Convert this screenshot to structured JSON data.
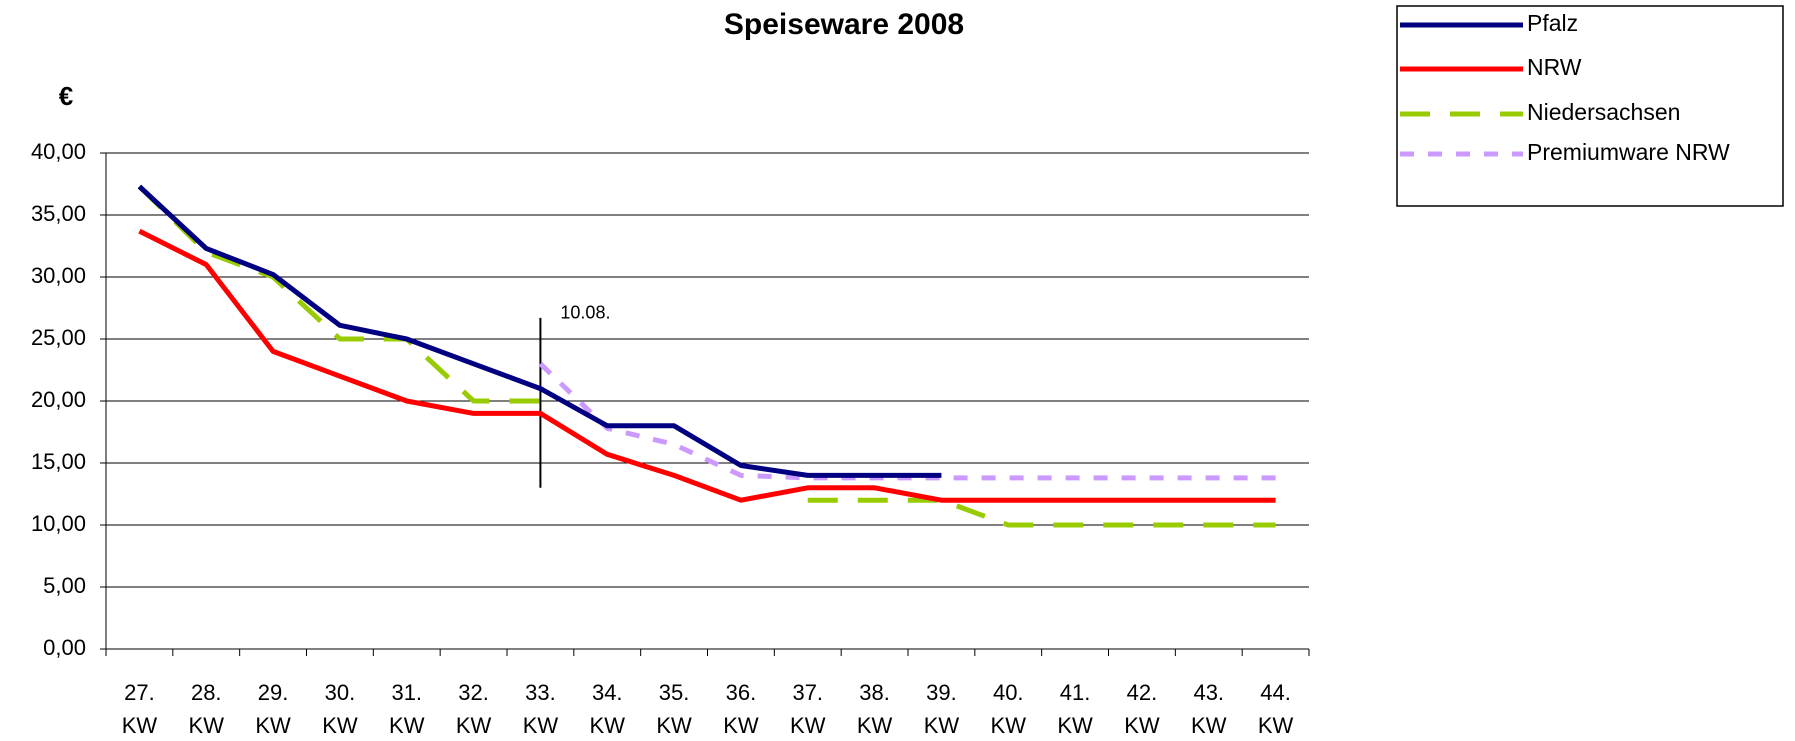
{
  "chart_data": {
    "type": "line",
    "title": "Speiseware 2008",
    "y_label": "€",
    "categories": [
      "27. KW",
      "28. KW",
      "29. KW",
      "30. KW",
      "31. KW",
      "32. KW",
      "33. KW",
      "34. KW",
      "35. KW",
      "36. KW",
      "37. KW",
      "38. KW",
      "39. KW",
      "40. KW",
      "41. KW",
      "42. KW",
      "43. KW",
      "44. KW"
    ],
    "series": [
      {
        "name": "Pfalz",
        "color": "#000080",
        "dash": "solid",
        "values": [
          37.3,
          32.3,
          30.2,
          26.1,
          25,
          23,
          21,
          18,
          18,
          14.8,
          14,
          14,
          14,
          null,
          null,
          null,
          null,
          null
        ]
      },
      {
        "name": "NRW",
        "color": "#ff0000",
        "dash": "solid",
        "values": [
          33.7,
          31,
          24,
          22,
          20,
          19,
          19,
          15.7,
          14,
          12,
          13,
          13,
          12,
          12,
          12,
          12,
          12,
          12
        ]
      },
      {
        "name": "Niedersachsen",
        "color": "#99cc00",
        "dash": "dashed",
        "values": [
          37.3,
          32,
          30,
          25,
          25,
          20,
          20,
          null,
          null,
          null,
          12,
          12,
          12,
          10,
          10,
          10,
          10,
          10
        ]
      },
      {
        "name": "Premiumware NRW",
        "color": "#cc99ff",
        "dash": "dotted",
        "values": [
          null,
          null,
          null,
          null,
          null,
          null,
          23,
          17.8,
          16.5,
          14,
          13.8,
          13.8,
          13.8,
          13.8,
          13.8,
          13.8,
          13.8,
          13.8
        ]
      }
    ],
    "ylim": [
      0,
      40
    ],
    "yticks": [
      {
        "value": 0,
        "label": "0,00"
      },
      {
        "value": 5,
        "label": "5,00"
      },
      {
        "value": 10,
        "label": "10,00"
      },
      {
        "value": 15,
        "label": "15,00"
      },
      {
        "value": 20,
        "label": "20,00"
      },
      {
        "value": 25,
        "label": "25,00"
      },
      {
        "value": 30,
        "label": "30,00"
      },
      {
        "value": 35,
        "label": "35,00"
      },
      {
        "value": 40,
        "label": "40,00"
      }
    ],
    "grid": true,
    "legend": "top-right",
    "annotation": {
      "text": "10.08.",
      "x": "33. KW",
      "y_range": [
        13,
        26.7
      ]
    }
  }
}
